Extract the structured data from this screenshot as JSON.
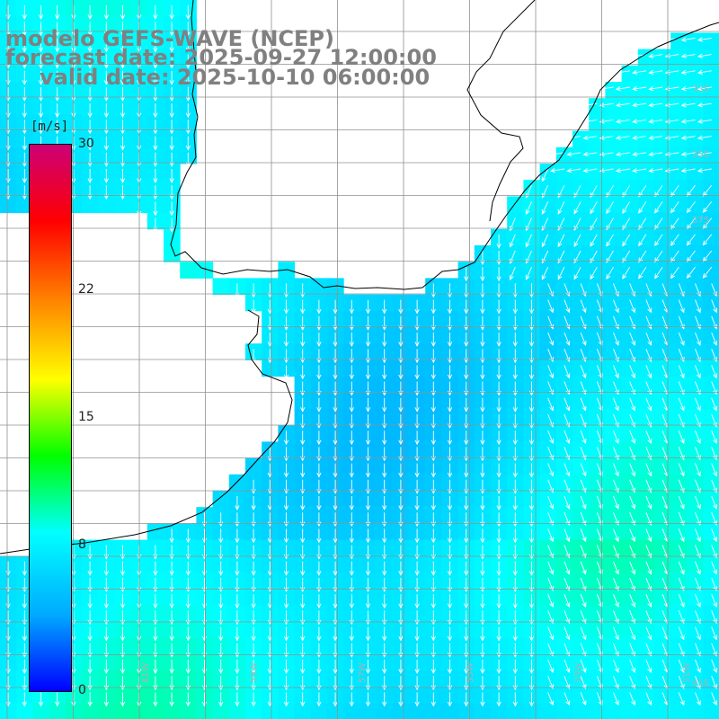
{
  "title": {
    "model": "modelo GEFS-WAVE (NCEP)",
    "forecast": "forecast date: 2025-09-27 12:00:00",
    "valid": "valid date: 2025-10-10 06:00:00"
  },
  "colorbar": {
    "unit": "[m/s]",
    "ticks": [
      {
        "value": 30,
        "label": "30"
      },
      {
        "value": 22,
        "label": "22"
      },
      {
        "value": 15,
        "label": "15"
      },
      {
        "value": 8,
        "label": "8"
      },
      {
        "value": 0,
        "label": "0"
      }
    ],
    "colors": [
      "#0000ff",
      "#00aaff",
      "#00ffff",
      "#00ff00",
      "#ffff00",
      "#ff8800",
      "#ff0000",
      "#cc0077"
    ]
  },
  "field": {
    "quantity": "wind speed",
    "dominant_range_ms": [
      6,
      9
    ],
    "arrow_direction": "toward south / south-southeast"
  },
  "grid_labels": {
    "right": [
      "33S",
      "35S",
      "37S",
      "41S"
    ],
    "bottom": [
      "61W",
      "59W",
      "57W",
      "55W",
      "53W",
      "51W"
    ]
  },
  "colors": {
    "land": "#ffffff",
    "grid": "#909090",
    "coast": "#000000",
    "arrow": "#ffffff"
  }
}
